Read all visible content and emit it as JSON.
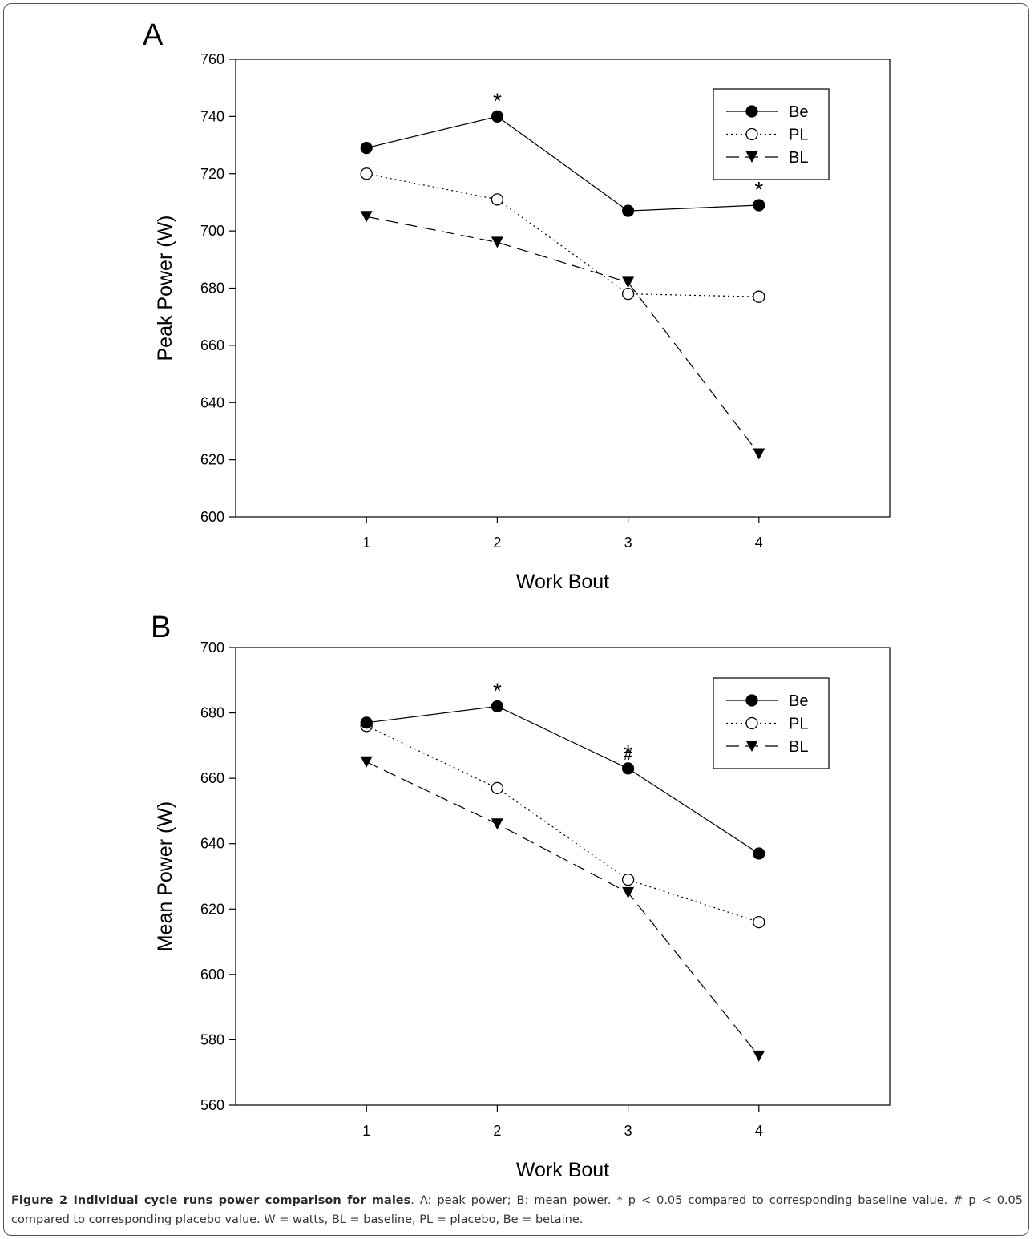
{
  "figure": {
    "caption_title": "Figure 2 Individual cycle runs power comparison for males",
    "caption_text": ". A: peak power; B: mean power. * p < 0.05 compared to corresponding baseline value. # p < 0.05 compared to corresponding placebo value. W = watts, BL = baseline, PL = placebo, Be = betaine."
  },
  "chart_data": [
    {
      "panel_label": "A",
      "type": "line",
      "xlabel": "Work Bout",
      "ylabel": "Peak Power (W)",
      "x": [
        1,
        2,
        3,
        4
      ],
      "xticks": [
        "1",
        "2",
        "3",
        "4"
      ],
      "xlim": [
        0,
        5
      ],
      "ylim": [
        600,
        760
      ],
      "yticks": [
        "600",
        "620",
        "640",
        "660",
        "680",
        "700",
        "720",
        "740",
        "760"
      ],
      "grid": false,
      "legend_position": "top-right",
      "series": [
        {
          "name": "Be",
          "values": [
            729,
            740,
            707,
            709
          ],
          "marker": "filled-circle",
          "line": "solid"
        },
        {
          "name": "PL",
          "values": [
            720,
            711,
            678,
            677
          ],
          "marker": "open-circle",
          "line": "dotted"
        },
        {
          "name": "BL",
          "values": [
            705,
            696,
            682,
            622
          ],
          "marker": "filled-triangle-down",
          "line": "dashed"
        }
      ],
      "annotations": [
        {
          "x": 2,
          "series": "Be",
          "text": "*"
        },
        {
          "x": 4,
          "series": "Be",
          "text": "*"
        }
      ]
    },
    {
      "panel_label": "B",
      "type": "line",
      "xlabel": "Work Bout",
      "ylabel": "Mean Power (W)",
      "x": [
        1,
        2,
        3,
        4
      ],
      "xticks": [
        "1",
        "2",
        "3",
        "4"
      ],
      "xlim": [
        0,
        5
      ],
      "ylim": [
        560,
        700
      ],
      "yticks": [
        "560",
        "580",
        "600",
        "620",
        "640",
        "660",
        "680",
        "700"
      ],
      "grid": false,
      "legend_position": "top-right",
      "series": [
        {
          "name": "Be",
          "values": [
            677,
            682,
            663,
            637
          ],
          "marker": "filled-circle",
          "line": "solid"
        },
        {
          "name": "PL",
          "values": [
            676,
            657,
            629,
            616
          ],
          "marker": "open-circle",
          "line": "dotted"
        },
        {
          "name": "BL",
          "values": [
            665,
            646,
            625,
            575
          ],
          "marker": "filled-triangle-down",
          "line": "dashed"
        }
      ],
      "annotations": [
        {
          "x": 2,
          "series": "Be",
          "text": "*"
        },
        {
          "x": 3,
          "series": "Be",
          "text": "*"
        },
        {
          "x": 3,
          "series": "Be",
          "text": "#"
        }
      ]
    }
  ]
}
